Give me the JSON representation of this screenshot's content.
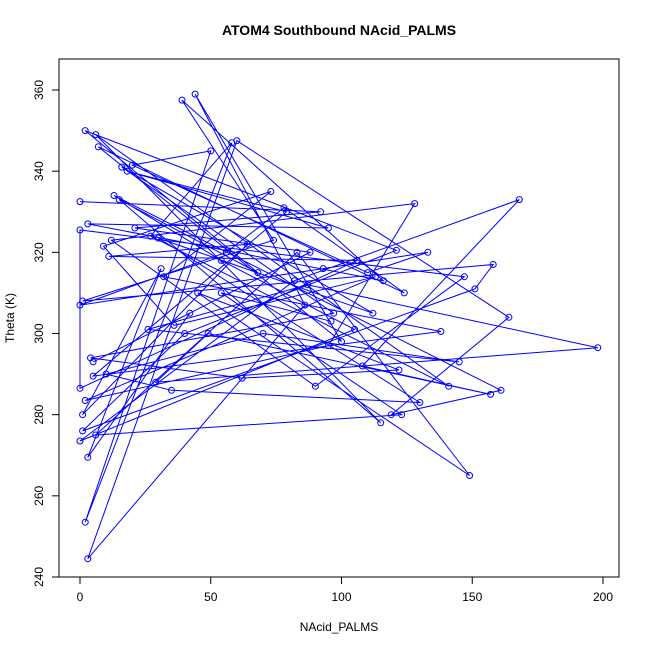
{
  "chart_data": {
    "type": "line",
    "title": "ATOM4 Southbound NAcid_PALMS",
    "xlabel": "NAcid_PALMS",
    "ylabel": "Theta (K)",
    "xlim": [
      -5,
      205
    ],
    "ylim": [
      240,
      367
    ],
    "xticks": [
      0,
      50,
      100,
      150,
      200
    ],
    "yticks": [
      240,
      260,
      280,
      300,
      320,
      340,
      360
    ],
    "grid": false,
    "markers": "open-circle",
    "colors": {
      "series": "#0000ff",
      "axis": "#000000",
      "background": "#ffffff"
    },
    "series": [
      {
        "values": [
          [
            0,
            332.5
          ],
          [
            92,
            330
          ],
          [
            21,
            326
          ],
          [
            88,
            320
          ],
          [
            5,
            293
          ],
          [
            42,
            305
          ],
          [
            3,
            269.5
          ],
          [
            31,
            316
          ],
          [
            1,
            280
          ],
          [
            64,
            322
          ],
          [
            11,
            319
          ],
          [
            106,
            318
          ],
          [
            0,
            286.5
          ],
          [
            0,
            325.5
          ],
          [
            147,
            314
          ],
          [
            90,
            287
          ],
          [
            12,
            323
          ],
          [
            128,
            332
          ],
          [
            95,
            297
          ],
          [
            2,
            283.5
          ],
          [
            113,
            314
          ],
          [
            36,
            302
          ],
          [
            9,
            321.5
          ],
          [
            73,
            335
          ],
          [
            32,
            314
          ],
          [
            138,
            300.5
          ],
          [
            5,
            289.5
          ],
          [
            79,
            330
          ],
          [
            18,
            340
          ],
          [
            95,
            326
          ],
          [
            3,
            327
          ],
          [
            116,
            313
          ],
          [
            39,
            357.5
          ],
          [
            74,
            323
          ],
          [
            1,
            308
          ],
          [
            158,
            317
          ],
          [
            151,
            311
          ],
          [
            1,
            276
          ],
          [
            40,
            300
          ],
          [
            121,
            320.5
          ],
          [
            2,
            350
          ],
          [
            68,
            315
          ],
          [
            15,
            333
          ],
          [
            115,
            278
          ],
          [
            6,
            349
          ],
          [
            141,
            287
          ],
          [
            27,
            324
          ],
          [
            58,
            347
          ],
          [
            2,
            253.5
          ],
          [
            50,
            345
          ],
          [
            20,
            341.5
          ],
          [
            110,
            315
          ],
          [
            133,
            320
          ],
          [
            93,
            316
          ],
          [
            0,
            307
          ],
          [
            56,
            320
          ],
          [
            78,
            331
          ],
          [
            124,
            310
          ],
          [
            7,
            346
          ],
          [
            100,
            298
          ],
          [
            44,
            359
          ],
          [
            86,
            307
          ],
          [
            3,
            244.5
          ],
          [
            60,
            347.5
          ],
          [
            164,
            304
          ],
          [
            119,
            280
          ],
          [
            161,
            286
          ],
          [
            13,
            334
          ],
          [
            54,
            318
          ],
          [
            105,
            301
          ],
          [
            0,
            273.5
          ],
          [
            82,
            313
          ],
          [
            168,
            333
          ],
          [
            108,
            292
          ],
          [
            157,
            285
          ],
          [
            49,
            300
          ],
          [
            29,
            288
          ],
          [
            198,
            296.5
          ],
          [
            87,
            312
          ],
          [
            26,
            301
          ],
          [
            145,
            293
          ],
          [
            70,
            300
          ],
          [
            10,
            290
          ],
          [
            35,
            286
          ],
          [
            130,
            283
          ],
          [
            30,
            323.5
          ],
          [
            112,
            305
          ],
          [
            16,
            341
          ],
          [
            97,
            305
          ],
          [
            4,
            294
          ],
          [
            62,
            289
          ],
          [
            122,
            291
          ],
          [
            45,
            310
          ],
          [
            149,
            265
          ],
          [
            83,
            320
          ],
          [
            6,
            275
          ],
          [
            123,
            280
          ],
          [
            54,
            310
          ],
          [
            96,
            303
          ]
        ]
      }
    ]
  }
}
